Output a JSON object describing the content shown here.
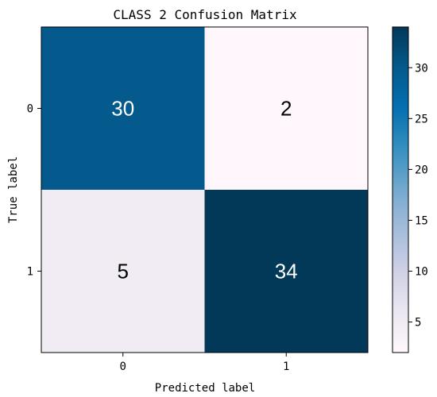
{
  "chart_data": {
    "type": "heatmap",
    "title": "CLASS 2 Confusion Matrix",
    "xlabel": "Predicted label",
    "ylabel": "True label",
    "x_ticks": [
      "0",
      "1"
    ],
    "y_ticks": [
      "0",
      "1"
    ],
    "matrix": [
      [
        30,
        2
      ],
      [
        5,
        34
      ]
    ],
    "colormap": "PuBu",
    "color_range": [
      2,
      34
    ],
    "colorbar_ticks": [
      5,
      10,
      15,
      20,
      25,
      30
    ],
    "colorbar_tick_labels": [
      "5",
      "10",
      "15",
      "20",
      "25",
      "30"
    ],
    "grid": false
  }
}
